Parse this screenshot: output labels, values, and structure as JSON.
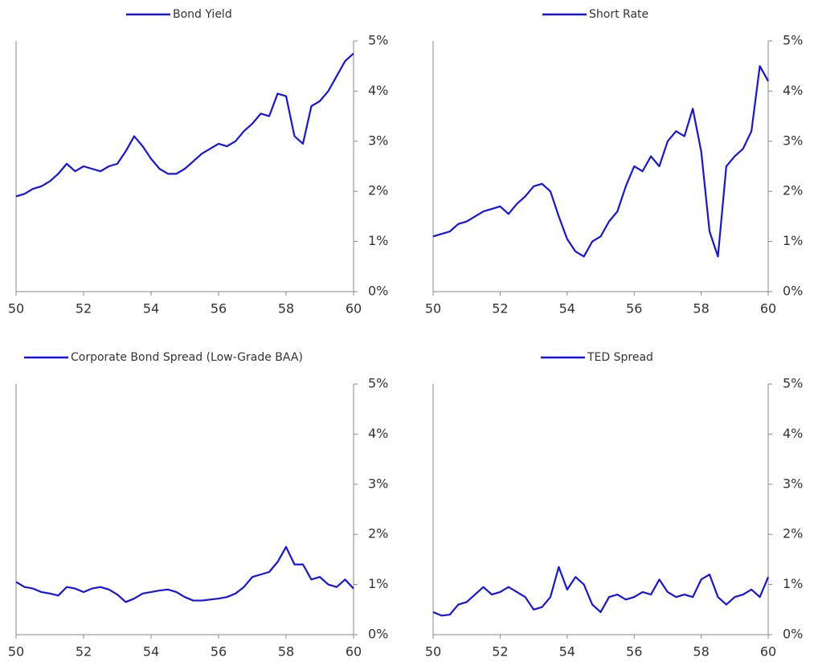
{
  "chart_data": [
    {
      "type": "line",
      "x": [
        50,
        50.25,
        50.5,
        50.75,
        51,
        51.25,
        51.5,
        51.75,
        52,
        52.25,
        52.5,
        52.75,
        53,
        53.25,
        53.5,
        53.75,
        54,
        54.25,
        54.5,
        54.75,
        55,
        55.25,
        55.5,
        55.75,
        56,
        56.25,
        56.5,
        56.75,
        57,
        57.25,
        57.5,
        57.75,
        58,
        58.25,
        58.5,
        58.75,
        59,
        59.25,
        59.5,
        59.75,
        60
      ],
      "series": [
        {
          "name": "Bond Yield",
          "color": "#1414e6",
          "values": [
            1.9,
            1.95,
            2.05,
            2.1,
            2.2,
            2.35,
            2.55,
            2.4,
            2.5,
            2.45,
            2.4,
            2.5,
            2.55,
            2.8,
            3.1,
            2.9,
            2.65,
            2.45,
            2.35,
            2.35,
            2.45,
            2.6,
            2.75,
            2.85,
            2.95,
            2.9,
            3.0,
            3.2,
            3.35,
            3.55,
            3.5,
            3.95,
            3.9,
            3.1,
            2.95,
            3.7,
            3.8,
            4.0,
            4.3,
            4.6,
            4.75
          ]
        }
      ],
      "xlim": [
        50,
        60
      ],
      "xticks": [
        50,
        52,
        54,
        56,
        58,
        60
      ],
      "ylim": [
        0,
        5
      ],
      "yticks": [
        {
          "value": 0,
          "label": "0%"
        },
        {
          "value": 1,
          "label": "1%"
        },
        {
          "value": 2,
          "label": "2%"
        },
        {
          "value": 3,
          "label": "3%"
        },
        {
          "value": 4,
          "label": "4%"
        },
        {
          "value": 5,
          "label": "5%"
        }
      ]
    },
    {
      "type": "line",
      "x": [
        50,
        50.25,
        50.5,
        50.75,
        51,
        51.25,
        51.5,
        51.75,
        52,
        52.25,
        52.5,
        52.75,
        53,
        53.25,
        53.5,
        53.75,
        54,
        54.25,
        54.5,
        54.75,
        55,
        55.25,
        55.5,
        55.75,
        56,
        56.25,
        56.5,
        56.75,
        57,
        57.25,
        57.5,
        57.75,
        58,
        58.25,
        58.5,
        58.75,
        59,
        59.25,
        59.5,
        59.75,
        60
      ],
      "series": [
        {
          "name": "Short Rate",
          "color": "#1414e6",
          "values": [
            1.1,
            1.15,
            1.2,
            1.35,
            1.4,
            1.5,
            1.6,
            1.65,
            1.7,
            1.55,
            1.75,
            1.9,
            2.1,
            2.15,
            2.0,
            1.5,
            1.05,
            0.8,
            0.7,
            1.0,
            1.1,
            1.4,
            1.6,
            2.1,
            2.5,
            2.4,
            2.7,
            2.5,
            3.0,
            3.2,
            3.1,
            3.65,
            2.8,
            1.2,
            0.7,
            2.5,
            2.7,
            2.85,
            3.2,
            4.5,
            4.2
          ]
        }
      ],
      "xlim": [
        50,
        60
      ],
      "xticks": [
        50,
        52,
        54,
        56,
        58,
        60
      ],
      "ylim": [
        0,
        5
      ],
      "yticks": [
        {
          "value": 0,
          "label": "0%"
        },
        {
          "value": 1,
          "label": "1%"
        },
        {
          "value": 2,
          "label": "2%"
        },
        {
          "value": 3,
          "label": "3%"
        },
        {
          "value": 4,
          "label": "4%"
        },
        {
          "value": 5,
          "label": "5%"
        }
      ]
    },
    {
      "type": "line",
      "x": [
        50,
        50.25,
        50.5,
        50.75,
        51,
        51.25,
        51.5,
        51.75,
        52,
        52.25,
        52.5,
        52.75,
        53,
        53.25,
        53.5,
        53.75,
        54,
        54.25,
        54.5,
        54.75,
        55,
        55.25,
        55.5,
        55.75,
        56,
        56.25,
        56.5,
        56.75,
        57,
        57.25,
        57.5,
        57.75,
        58,
        58.25,
        58.5,
        58.75,
        59,
        59.25,
        59.5,
        59.75,
        60
      ],
      "series": [
        {
          "name": "Corporate Bond Spread (Low-Grade BAA)",
          "color": "#1414e6",
          "values": [
            1.05,
            0.95,
            0.92,
            0.85,
            0.82,
            0.78,
            0.95,
            0.92,
            0.85,
            0.92,
            0.95,
            0.9,
            0.8,
            0.65,
            0.72,
            0.82,
            0.85,
            0.88,
            0.9,
            0.85,
            0.75,
            0.68,
            0.68,
            0.7,
            0.72,
            0.75,
            0.82,
            0.95,
            1.15,
            1.2,
            1.25,
            1.45,
            1.75,
            1.4,
            1.4,
            1.1,
            1.15,
            1.0,
            0.95,
            1.1,
            0.92
          ]
        }
      ],
      "xlim": [
        50,
        60
      ],
      "xticks": [
        50,
        52,
        54,
        56,
        58,
        60
      ],
      "ylim": [
        0,
        5
      ],
      "yticks": [
        {
          "value": 0,
          "label": "0%"
        },
        {
          "value": 1,
          "label": "1%"
        },
        {
          "value": 2,
          "label": "2%"
        },
        {
          "value": 3,
          "label": "3%"
        },
        {
          "value": 4,
          "label": "4%"
        },
        {
          "value": 5,
          "label": "5%"
        }
      ]
    },
    {
      "type": "line",
      "x": [
        50,
        50.25,
        50.5,
        50.75,
        51,
        51.25,
        51.5,
        51.75,
        52,
        52.25,
        52.5,
        52.75,
        53,
        53.25,
        53.5,
        53.75,
        54,
        54.25,
        54.5,
        54.75,
        55,
        55.25,
        55.5,
        55.75,
        56,
        56.25,
        56.5,
        56.75,
        57,
        57.25,
        57.5,
        57.75,
        58,
        58.25,
        58.5,
        58.75,
        59,
        59.25,
        59.5,
        59.75,
        60
      ],
      "series": [
        {
          "name": "TED Spread",
          "color": "#1414e6",
          "values": [
            0.45,
            0.38,
            0.4,
            0.6,
            0.65,
            0.8,
            0.95,
            0.8,
            0.85,
            0.95,
            0.85,
            0.75,
            0.5,
            0.55,
            0.75,
            1.35,
            0.9,
            1.15,
            1.0,
            0.6,
            0.45,
            0.75,
            0.8,
            0.7,
            0.75,
            0.85,
            0.8,
            1.1,
            0.85,
            0.75,
            0.8,
            0.75,
            1.1,
            1.2,
            0.75,
            0.6,
            0.75,
            0.8,
            0.9,
            0.75,
            1.15
          ]
        }
      ],
      "xlim": [
        50,
        60
      ],
      "xticks": [
        50,
        52,
        54,
        56,
        58,
        60
      ],
      "ylim": [
        0,
        5
      ],
      "yticks": [
        {
          "value": 0,
          "label": "0%"
        },
        {
          "value": 1,
          "label": "1%"
        },
        {
          "value": 2,
          "label": "2%"
        },
        {
          "value": 3,
          "label": "3%"
        },
        {
          "value": 4,
          "label": "4%"
        },
        {
          "value": 5,
          "label": "5%"
        }
      ]
    }
  ]
}
